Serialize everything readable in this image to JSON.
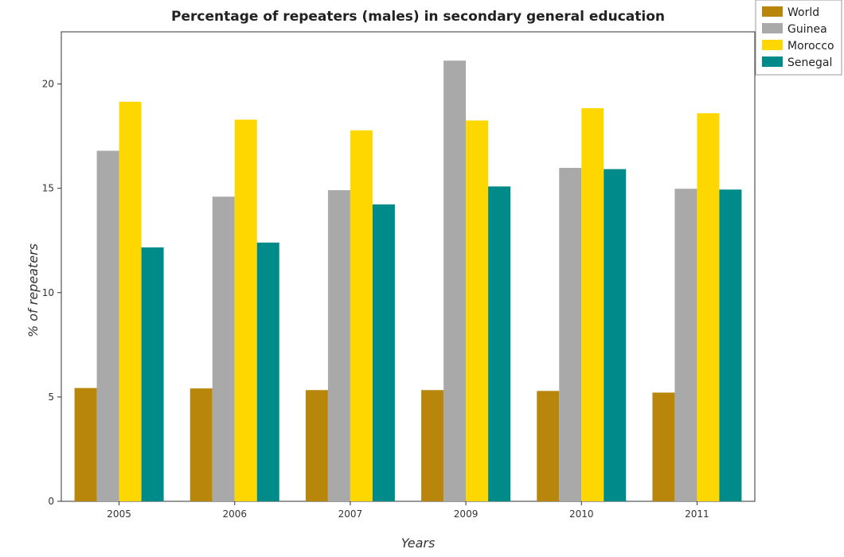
{
  "chart_data": {
    "type": "bar",
    "title": "Percentage of repeaters (males) in secondary general education",
    "xlabel": "Years",
    "ylabel": "% of repeaters",
    "categories": [
      "2005",
      "2006",
      "2007",
      "2009",
      "2010",
      "2011"
    ],
    "ylim": [
      0,
      22.5
    ],
    "yticks": [
      0,
      5,
      10,
      15,
      20
    ],
    "grid": false,
    "legend_position": "top-right",
    "series": [
      {
        "name": "World",
        "color": "#b8860b",
        "values": [
          5.43,
          5.41,
          5.33,
          5.33,
          5.29,
          5.21
        ]
      },
      {
        "name": "Guinea",
        "color": "#a9a9a9",
        "values": [
          16.8,
          14.6,
          14.91,
          21.12,
          15.98,
          14.98
        ]
      },
      {
        "name": "Morocco",
        "color": "#ffd700",
        "values": [
          19.15,
          18.29,
          17.78,
          18.25,
          18.84,
          18.6
        ]
      },
      {
        "name": "Senegal",
        "color": "#008b8b",
        "values": [
          12.17,
          12.4,
          14.23,
          15.09,
          15.92,
          14.94
        ]
      }
    ]
  }
}
